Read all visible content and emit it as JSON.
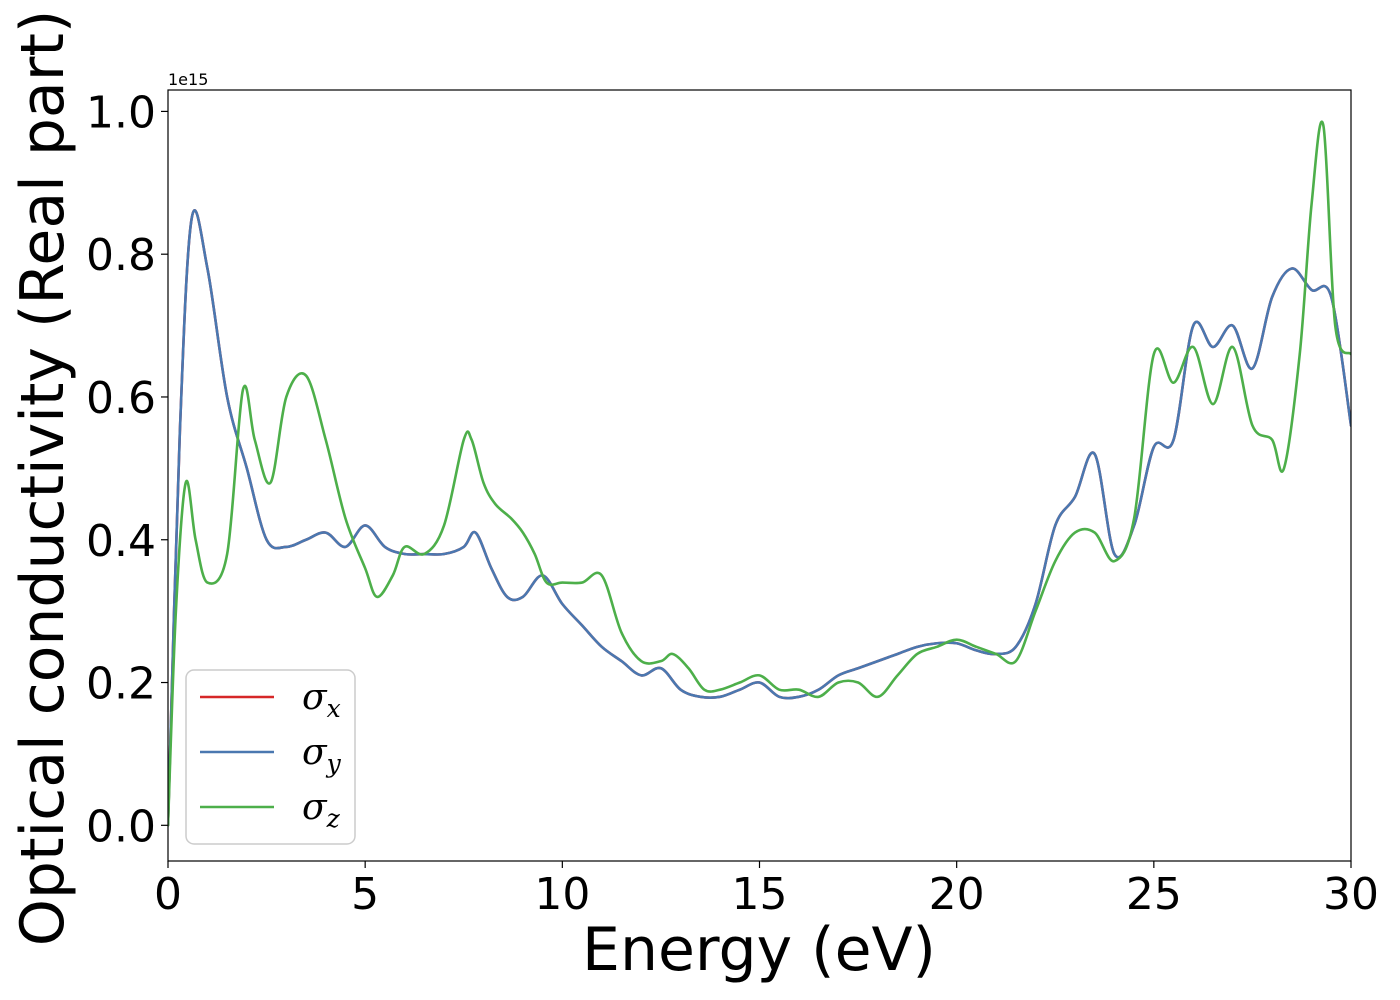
{
  "chart_data": {
    "type": "line",
    "xlabel": "Energy (eV)",
    "ylabel": "Optical conductivity (Real part)",
    "y_offset_text": "1e15",
    "xlim": [
      0,
      30
    ],
    "ylim": [
      -0.05,
      1.03
    ],
    "x_ticks": [
      0,
      5,
      10,
      15,
      20,
      25,
      30
    ],
    "x_tick_labels": [
      "0",
      "5",
      "10",
      "15",
      "20",
      "25",
      "30"
    ],
    "y_ticks": [
      0.0,
      0.2,
      0.4,
      0.6,
      0.8,
      1.0
    ],
    "y_tick_labels": [
      "0.0",
      "0.2",
      "0.4",
      "0.6",
      "0.8",
      "1.0"
    ],
    "grid": false,
    "legend_position": "lower-left",
    "colors": {
      "sigma_x": "#d62728",
      "sigma_y": "#4a78b0",
      "sigma_z": "#4daf4a"
    },
    "series": [
      {
        "name": "σx",
        "symbol": "σ",
        "subscript": "x",
        "color": "#d62728",
        "x": [
          0,
          0.3,
          0.6,
          1.0,
          1.5,
          2.0,
          2.5,
          3.0,
          3.5,
          4.0,
          4.5,
          5.0,
          5.5,
          6.0,
          6.5,
          7.0,
          7.5,
          7.8,
          8.2,
          8.6,
          9.0,
          9.5,
          10.0,
          10.5,
          11.0,
          11.5,
          12.0,
          12.5,
          13.0,
          13.5,
          14.0,
          14.5,
          15.0,
          15.5,
          16.0,
          16.5,
          17.0,
          17.5,
          18.0,
          18.5,
          19.0,
          19.5,
          20.0,
          20.5,
          21.0,
          21.5,
          22.0,
          22.5,
          23.0,
          23.5,
          24.0,
          24.5,
          25.0,
          25.5,
          26.0,
          26.5,
          27.0,
          27.5,
          28.0,
          28.5,
          29.0,
          29.5,
          30.0
        ],
        "values": [
          0.0,
          0.55,
          0.85,
          0.78,
          0.6,
          0.5,
          0.4,
          0.39,
          0.4,
          0.41,
          0.39,
          0.42,
          0.39,
          0.38,
          0.38,
          0.38,
          0.39,
          0.41,
          0.36,
          0.32,
          0.32,
          0.35,
          0.31,
          0.28,
          0.25,
          0.23,
          0.21,
          0.22,
          0.19,
          0.18,
          0.18,
          0.19,
          0.2,
          0.18,
          0.18,
          0.19,
          0.21,
          0.22,
          0.23,
          0.24,
          0.25,
          0.255,
          0.255,
          0.245,
          0.24,
          0.25,
          0.31,
          0.42,
          0.46,
          0.52,
          0.38,
          0.42,
          0.53,
          0.54,
          0.7,
          0.67,
          0.7,
          0.64,
          0.74,
          0.78,
          0.75,
          0.74,
          0.56
        ]
      },
      {
        "name": "σy",
        "symbol": "σ",
        "subscript": "y",
        "color": "#4a78b0",
        "x": [
          0,
          0.3,
          0.6,
          1.0,
          1.5,
          2.0,
          2.5,
          3.0,
          3.5,
          4.0,
          4.5,
          5.0,
          5.5,
          6.0,
          6.5,
          7.0,
          7.5,
          7.8,
          8.2,
          8.6,
          9.0,
          9.5,
          10.0,
          10.5,
          11.0,
          11.5,
          12.0,
          12.5,
          13.0,
          13.5,
          14.0,
          14.5,
          15.0,
          15.5,
          16.0,
          16.5,
          17.0,
          17.5,
          18.0,
          18.5,
          19.0,
          19.5,
          20.0,
          20.5,
          21.0,
          21.5,
          22.0,
          22.5,
          23.0,
          23.5,
          24.0,
          24.5,
          25.0,
          25.5,
          26.0,
          26.5,
          27.0,
          27.5,
          28.0,
          28.5,
          29.0,
          29.5,
          30.0
        ],
        "values": [
          0.0,
          0.55,
          0.85,
          0.78,
          0.6,
          0.5,
          0.4,
          0.39,
          0.4,
          0.41,
          0.39,
          0.42,
          0.39,
          0.38,
          0.38,
          0.38,
          0.39,
          0.41,
          0.36,
          0.32,
          0.32,
          0.35,
          0.31,
          0.28,
          0.25,
          0.23,
          0.21,
          0.22,
          0.19,
          0.18,
          0.18,
          0.19,
          0.2,
          0.18,
          0.18,
          0.19,
          0.21,
          0.22,
          0.23,
          0.24,
          0.25,
          0.255,
          0.255,
          0.245,
          0.24,
          0.25,
          0.31,
          0.42,
          0.46,
          0.52,
          0.38,
          0.42,
          0.53,
          0.54,
          0.7,
          0.67,
          0.7,
          0.64,
          0.74,
          0.78,
          0.75,
          0.74,
          0.56
        ]
      },
      {
        "name": "σz",
        "symbol": "σ",
        "subscript": "z",
        "color": "#4daf4a",
        "x": [
          0,
          0.2,
          0.45,
          0.7,
          1.0,
          1.5,
          1.9,
          2.2,
          2.6,
          3.0,
          3.5,
          4.0,
          4.5,
          5.0,
          5.3,
          5.7,
          6.0,
          6.5,
          7.0,
          7.5,
          7.7,
          8.0,
          8.3,
          8.7,
          9.0,
          9.3,
          9.6,
          10.0,
          10.5,
          11.0,
          11.5,
          12.0,
          12.5,
          12.8,
          13.2,
          13.6,
          14.0,
          14.5,
          15.0,
          15.5,
          16.0,
          16.5,
          17.0,
          17.5,
          18.0,
          18.5,
          19.0,
          19.5,
          20.0,
          20.5,
          21.0,
          21.5,
          22.0,
          22.5,
          23.0,
          23.5,
          24.0,
          24.5,
          25.0,
          25.5,
          26.0,
          26.5,
          27.0,
          27.5,
          28.0,
          28.3,
          28.7,
          29.0,
          29.3,
          29.6,
          30.0
        ],
        "values": [
          0.0,
          0.3,
          0.48,
          0.4,
          0.34,
          0.38,
          0.61,
          0.54,
          0.48,
          0.6,
          0.63,
          0.54,
          0.43,
          0.36,
          0.32,
          0.35,
          0.39,
          0.38,
          0.42,
          0.54,
          0.54,
          0.48,
          0.45,
          0.43,
          0.41,
          0.38,
          0.34,
          0.34,
          0.34,
          0.35,
          0.27,
          0.23,
          0.23,
          0.24,
          0.22,
          0.19,
          0.19,
          0.2,
          0.21,
          0.19,
          0.19,
          0.18,
          0.2,
          0.2,
          0.18,
          0.21,
          0.24,
          0.25,
          0.26,
          0.25,
          0.24,
          0.23,
          0.3,
          0.37,
          0.41,
          0.41,
          0.37,
          0.43,
          0.66,
          0.62,
          0.67,
          0.59,
          0.67,
          0.56,
          0.54,
          0.5,
          0.66,
          0.87,
          0.98,
          0.7,
          0.66
        ]
      }
    ]
  }
}
